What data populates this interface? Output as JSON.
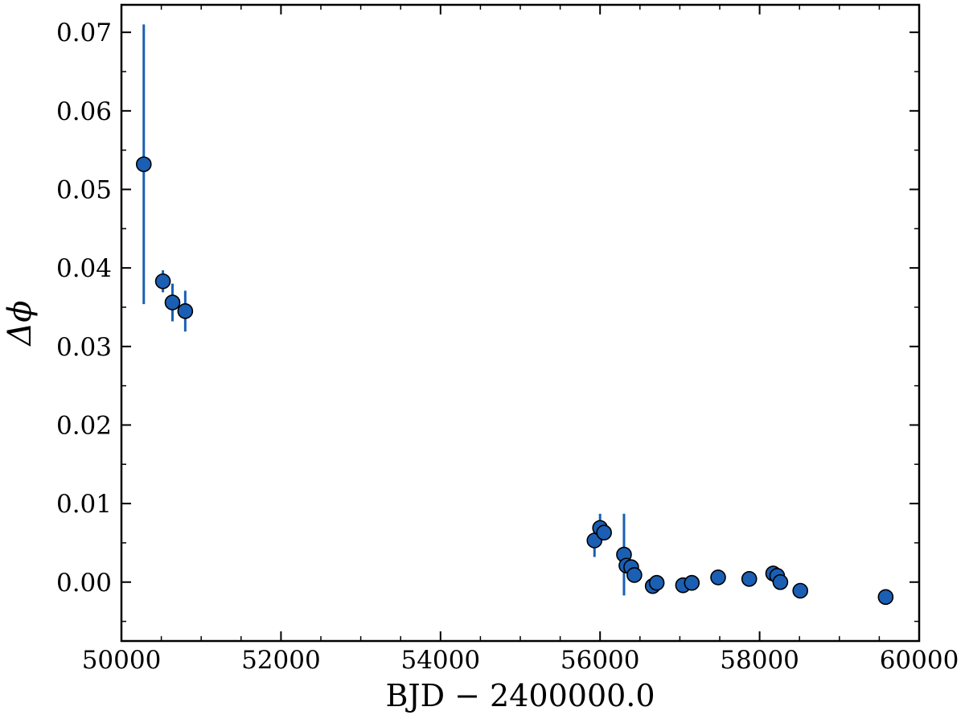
{
  "chart_data": {
    "type": "scatter",
    "xlabel": "BJD − 2400000.0",
    "ylabel": "Δϕ",
    "xlim": [
      50000,
      60000
    ],
    "ylim": [
      -0.0075,
      0.0735
    ],
    "x_ticks": [
      50000,
      52000,
      54000,
      56000,
      58000,
      60000
    ],
    "y_ticks": [
      0.0,
      0.01,
      0.02,
      0.03,
      0.04,
      0.05,
      0.06,
      0.07
    ],
    "x_tick_labels": [
      "50000",
      "52000",
      "54000",
      "56000",
      "58000",
      "60000"
    ],
    "y_tick_labels": [
      "0.00",
      "0.01",
      "0.02",
      "0.03",
      "0.04",
      "0.05",
      "0.06",
      "0.07"
    ],
    "grid": false,
    "colors": {
      "marker_fill": "#1a5fb4",
      "marker_edge": "#000000",
      "errorbar": "#1a5fb4"
    },
    "series": [
      {
        "points": [
          {
            "x": 50280,
            "y": 0.0532,
            "err": 0.0178
          },
          {
            "x": 50520,
            "y": 0.0383,
            "err": 0.0014
          },
          {
            "x": 50640,
            "y": 0.0356,
            "err": 0.0024
          },
          {
            "x": 50800,
            "y": 0.0345,
            "err": 0.0026
          },
          {
            "x": 55930,
            "y": 0.0053,
            "err": 0.0021
          },
          {
            "x": 56000,
            "y": 0.0069,
            "err": 0.0018
          },
          {
            "x": 56050,
            "y": 0.0063,
            "err": 0.0008
          },
          {
            "x": 56300,
            "y": 0.0035,
            "err": 0.0052
          },
          {
            "x": 56330,
            "y": 0.0021,
            "err": 0.0005
          },
          {
            "x": 56390,
            "y": 0.0019,
            "err": 0.0004
          },
          {
            "x": 56430,
            "y": 0.0009,
            "err": 0.0004
          },
          {
            "x": 56660,
            "y": -0.0005,
            "err": 0.0003
          },
          {
            "x": 56710,
            "y": -0.0001,
            "err": 0.0003
          },
          {
            "x": 57040,
            "y": -0.0004,
            "err": 0.0003
          },
          {
            "x": 57150,
            "y": -0.0001,
            "err": 0.0003
          },
          {
            "x": 57480,
            "y": 0.0006,
            "err": 0.0003
          },
          {
            "x": 57870,
            "y": 0.0004,
            "err": 0.0003
          },
          {
            "x": 58170,
            "y": 0.0011,
            "err": 0.0003
          },
          {
            "x": 58220,
            "y": 0.0008,
            "err": 0.0003
          },
          {
            "x": 58260,
            "y": 0.0,
            "err": 0.0003
          },
          {
            "x": 58510,
            "y": -0.0011,
            "err": 0.0003
          },
          {
            "x": 59580,
            "y": -0.0019,
            "err": 0.0003
          }
        ]
      }
    ]
  }
}
